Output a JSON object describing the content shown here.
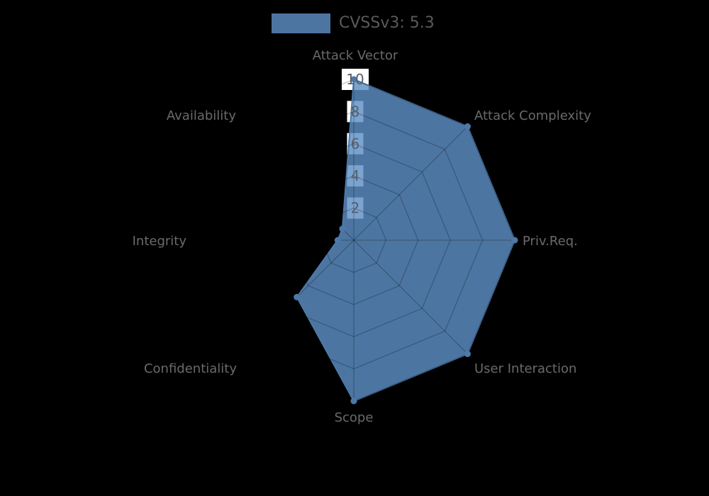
{
  "legend": {
    "label": "CVSSv3: 5.3"
  },
  "colors": {
    "series_fill": "#5e8fc4",
    "series_line": "#4d79a8",
    "grid_line": "rgba(0,0,0,0.24)",
    "background": "#000000",
    "axis_label": "#6a6a6a",
    "tick_label": "#555f6b",
    "tick_box": "#ffffff",
    "legend_text": "#5a5a5a"
  },
  "chart_data": {
    "type": "radar",
    "title": "CVSSv3: 5.3",
    "categories": [
      "Attack Vector",
      "Attack Complexity",
      "Priv.Req.",
      "User Interaction",
      "Scope",
      "Confidentiality",
      "Integrity",
      "Availability"
    ],
    "series": [
      {
        "name": "CVSSv3: 5.3",
        "values": [
          10,
          10,
          10,
          10,
          10,
          5,
          1,
          1
        ]
      }
    ],
    "ticks": [
      2,
      4,
      6,
      8,
      10
    ],
    "rmin": 0,
    "rmax": 10,
    "grid": true,
    "legend_position": "top-center"
  }
}
